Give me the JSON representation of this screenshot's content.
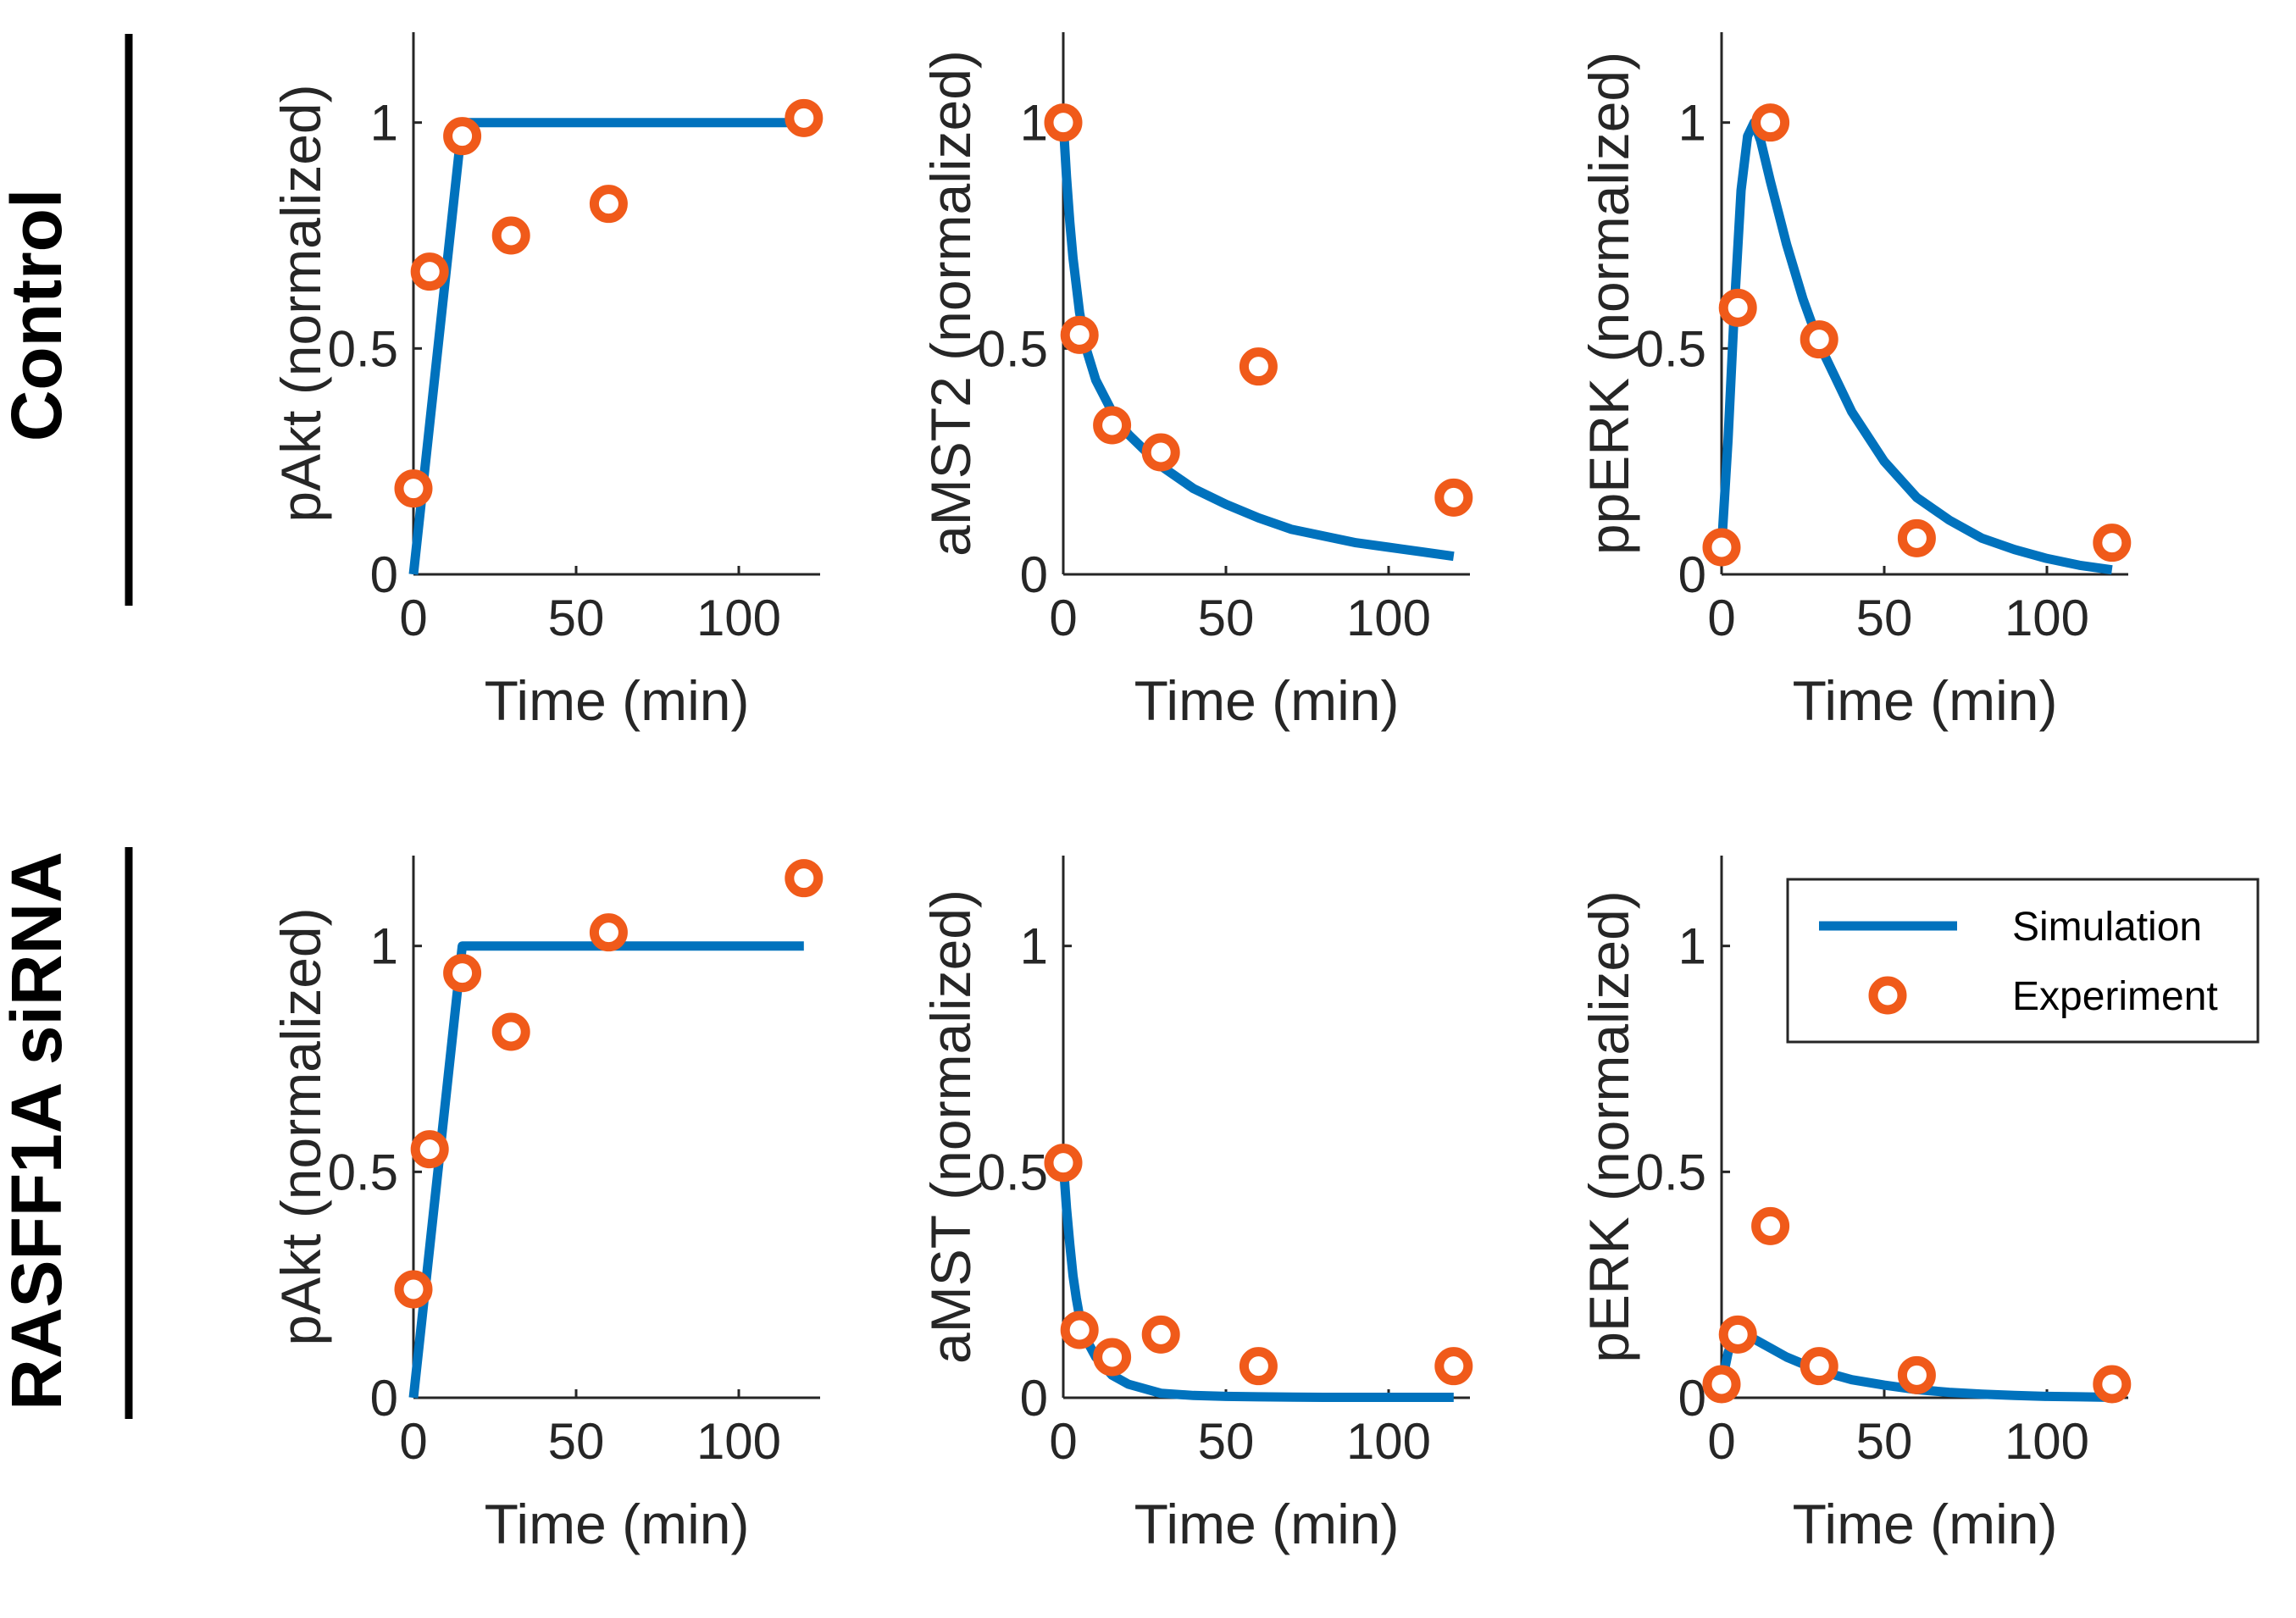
{
  "figure": {
    "rows": [
      {
        "label": "Control"
      },
      {
        "label": "RASFF1A siRNA"
      }
    ],
    "legend": {
      "simulation_label": "Simulation",
      "experiment_label": "Experiment"
    }
  },
  "colors": {
    "simulation": "#0072BD",
    "experiment": "#F05A1A",
    "axis": "#262626",
    "row_bar": "#000000"
  },
  "chart_data": [
    {
      "type": "line",
      "row": 0,
      "col": 0,
      "title": "",
      "xlabel": "Time (min)",
      "ylabel": "pAkt (normalized)",
      "xlim": [
        0,
        125
      ],
      "ylim": [
        0,
        1.2
      ],
      "xticks": [
        0,
        50,
        100
      ],
      "xtick_labels": [
        "0",
        "50",
        "100"
      ],
      "yticks": [
        0,
        0.5,
        1
      ],
      "ytick_labels": [
        "0",
        "0.5",
        "1"
      ],
      "simulation": {
        "name": "Simulation",
        "x": [
          0,
          15,
          120
        ],
        "y": [
          0,
          1,
          1
        ]
      },
      "experiment": {
        "name": "Experiment",
        "x": [
          0,
          5,
          15,
          30,
          60,
          120
        ],
        "y": [
          0.19,
          0.67,
          0.97,
          0.75,
          0.82,
          1.01
        ]
      }
    },
    {
      "type": "line",
      "row": 0,
      "col": 1,
      "title": "",
      "xlabel": "Time (min)",
      "ylabel": "aMST2 (normalized)",
      "xlim": [
        0,
        125
      ],
      "ylim": [
        0,
        1.2
      ],
      "xticks": [
        0,
        50,
        100
      ],
      "xtick_labels": [
        "0",
        "50",
        "100"
      ],
      "yticks": [
        0,
        0.5,
        1
      ],
      "ytick_labels": [
        "0",
        "0.5",
        "1"
      ],
      "simulation": {
        "name": "Simulation",
        "x": [
          0,
          1,
          2,
          3,
          5,
          7,
          10,
          15,
          20,
          30,
          40,
          50,
          60,
          70,
          80,
          90,
          100,
          110,
          120
        ],
        "y": [
          1.0,
          0.88,
          0.78,
          0.7,
          0.58,
          0.5,
          0.43,
          0.36,
          0.31,
          0.24,
          0.19,
          0.155,
          0.125,
          0.1,
          0.085,
          0.07,
          0.06,
          0.05,
          0.04
        ]
      },
      "experiment": {
        "name": "Experiment",
        "x": [
          0,
          5,
          15,
          30,
          60,
          120
        ],
        "y": [
          1.0,
          0.53,
          0.33,
          0.27,
          0.46,
          0.17
        ]
      }
    },
    {
      "type": "line",
      "row": 0,
      "col": 2,
      "title": "",
      "xlabel": "Time (min)",
      "ylabel": "ppERK (normalized)",
      "xlim": [
        0,
        125
      ],
      "ylim": [
        0,
        1.2
      ],
      "xticks": [
        0,
        50,
        100
      ],
      "xtick_labels": [
        "0",
        "50",
        "100"
      ],
      "yticks": [
        0,
        0.5,
        1
      ],
      "ytick_labels": [
        "0",
        "0.5",
        "1"
      ],
      "simulation": {
        "name": "Simulation",
        "x": [
          0,
          2,
          4,
          6,
          8,
          10,
          12,
          15,
          20,
          25,
          30,
          40,
          50,
          60,
          70,
          80,
          90,
          100,
          110,
          120
        ],
        "y": [
          0.06,
          0.3,
          0.6,
          0.85,
          0.97,
          1.0,
          0.96,
          0.87,
          0.73,
          0.61,
          0.51,
          0.36,
          0.25,
          0.17,
          0.12,
          0.08,
          0.055,
          0.035,
          0.02,
          0.01
        ]
      },
      "experiment": {
        "name": "Experiment",
        "x": [
          0,
          5,
          15,
          30,
          60,
          120
        ],
        "y": [
          0.06,
          0.59,
          1.0,
          0.52,
          0.08,
          0.07
        ]
      }
    },
    {
      "type": "line",
      "row": 1,
      "col": 0,
      "title": "",
      "xlabel": "Time (min)",
      "ylabel": "pAkt (normalized)",
      "xlim": [
        0,
        125
      ],
      "ylim": [
        0,
        1.2
      ],
      "xticks": [
        0,
        50,
        100
      ],
      "xtick_labels": [
        "0",
        "50",
        "100"
      ],
      "yticks": [
        0,
        0.5,
        1
      ],
      "ytick_labels": [
        "0",
        "0.5",
        "1"
      ],
      "simulation": {
        "name": "Simulation",
        "x": [
          0,
          15,
          120
        ],
        "y": [
          0,
          1,
          1
        ]
      },
      "experiment": {
        "name": "Experiment",
        "x": [
          0,
          5,
          15,
          30,
          60,
          120
        ],
        "y": [
          0.24,
          0.55,
          0.94,
          0.81,
          1.03,
          1.15
        ]
      }
    },
    {
      "type": "line",
      "row": 1,
      "col": 1,
      "title": "",
      "xlabel": "Time (min)",
      "ylabel": "aMST (normalized)",
      "xlim": [
        0,
        125
      ],
      "ylim": [
        0,
        1.2
      ],
      "xticks": [
        0,
        50,
        100
      ],
      "xtick_labels": [
        "0",
        "50",
        "100"
      ],
      "yticks": [
        0,
        0.5,
        1
      ],
      "ytick_labels": [
        "0",
        "0.5",
        "1"
      ],
      "simulation": {
        "name": "Simulation",
        "x": [
          0,
          1,
          2,
          3,
          4,
          5,
          7,
          10,
          15,
          20,
          30,
          40,
          50,
          60,
          80,
          100,
          120
        ],
        "y": [
          0.52,
          0.42,
          0.34,
          0.27,
          0.22,
          0.18,
          0.13,
          0.09,
          0.05,
          0.03,
          0.01,
          0.005,
          0.003,
          0.002,
          0.001,
          0.001,
          0.001
        ]
      },
      "experiment": {
        "name": "Experiment",
        "x": [
          0,
          5,
          15,
          30,
          60,
          120
        ],
        "y": [
          0.52,
          0.15,
          0.09,
          0.14,
          0.07,
          0.07
        ]
      }
    },
    {
      "type": "line",
      "row": 1,
      "col": 2,
      "title": "",
      "xlabel": "Time (min)",
      "ylabel": "pERK (normalized)",
      "xlim": [
        0,
        125
      ],
      "ylim": [
        0,
        1.2
      ],
      "xticks": [
        0,
        50,
        100
      ],
      "xtick_labels": [
        "0",
        "50",
        "100"
      ],
      "yticks": [
        0,
        0.5,
        1
      ],
      "ytick_labels": [
        "0",
        "0.5",
        "1"
      ],
      "legend": "top-right",
      "simulation": {
        "name": "Simulation",
        "x": [
          0,
          2,
          4,
          6,
          8,
          10,
          15,
          20,
          30,
          40,
          50,
          60,
          70,
          80,
          90,
          100,
          110,
          120
        ],
        "y": [
          0.03,
          0.1,
          0.14,
          0.145,
          0.14,
          0.13,
          0.11,
          0.09,
          0.06,
          0.04,
          0.028,
          0.018,
          0.012,
          0.008,
          0.005,
          0.003,
          0.002,
          0.001
        ]
      },
      "experiment": {
        "name": "Experiment",
        "x": [
          0,
          5,
          15,
          30,
          60,
          120
        ],
        "y": [
          0.03,
          0.14,
          0.38,
          0.07,
          0.05,
          0.03
        ]
      }
    }
  ]
}
